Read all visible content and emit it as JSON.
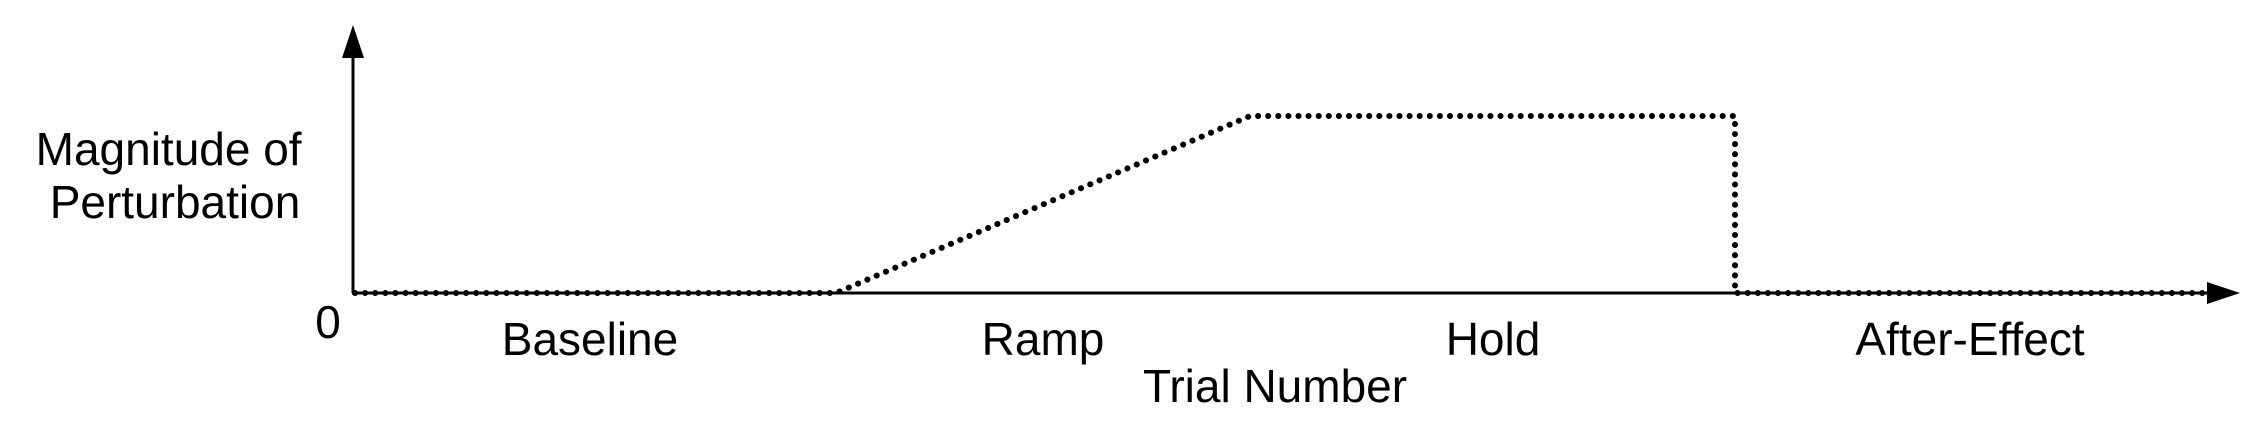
{
  "figure": {
    "y_axis_label_lines": [
      "Magnitude of",
      "Perturbation"
    ],
    "zero_label": "0",
    "x_axis_label": "Trial Number",
    "phases": [
      "Baseline",
      "Ramp",
      "Hold",
      "After-Effect"
    ]
  },
  "colors": {
    "axis": "#000000",
    "profile": "#000000",
    "background": "#ffffff"
  }
}
